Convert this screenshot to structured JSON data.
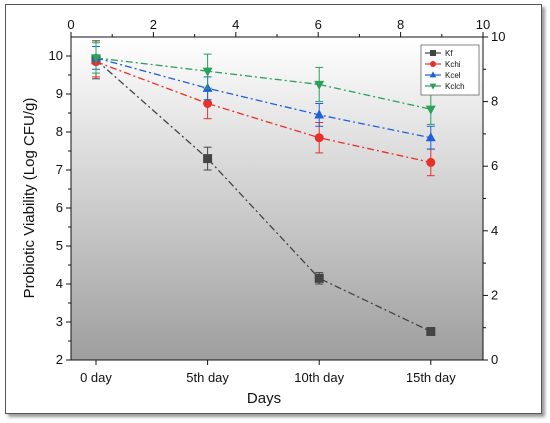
{
  "chart_data": {
    "type": "line",
    "xlabel": "Days",
    "ylabel": "Probiotic Viability (Log CFU/g)",
    "categories": [
      "0 day",
      "5th day",
      "10th day",
      "15th day"
    ],
    "left_axis": {
      "ylim": [
        2,
        10.5
      ],
      "ticks": [
        "2",
        "3",
        "4",
        "5",
        "6",
        "7",
        "8",
        "9",
        "10"
      ]
    },
    "right_axis": {
      "ylim": [
        0,
        10
      ],
      "ticks": [
        "0",
        "2",
        "4",
        "6",
        "8",
        "10"
      ]
    },
    "top_axis": {
      "xlim": [
        0,
        10
      ],
      "ticks": [
        "0",
        "2",
        "4",
        "6",
        "8",
        "10"
      ]
    },
    "background": "gradient-gray",
    "legend_position": "top-right",
    "series": [
      {
        "name": "Kf",
        "color": "#444444",
        "marker": "square",
        "values": [
          9.9,
          7.3,
          4.15,
          2.75
        ],
        "errors": [
          0.5,
          0.3,
          0.15,
          0.1
        ]
      },
      {
        "name": "Kchi",
        "color": "#e8302a",
        "marker": "circle",
        "values": [
          9.85,
          8.75,
          7.85,
          7.2
        ],
        "errors": [
          0.4,
          0.4,
          0.4,
          0.35
        ]
      },
      {
        "name": "Kcel",
        "color": "#1f5fdc",
        "marker": "triangle-up",
        "values": [
          9.95,
          9.15,
          8.45,
          7.85
        ],
        "errors": [
          0.3,
          0.3,
          0.3,
          0.3
        ]
      },
      {
        "name": "Kclch",
        "color": "#2aa05a",
        "marker": "triangle-down",
        "values": [
          9.95,
          9.6,
          9.25,
          8.6
        ],
        "errors": [
          0.4,
          0.45,
          0.45,
          0.4
        ]
      }
    ]
  }
}
